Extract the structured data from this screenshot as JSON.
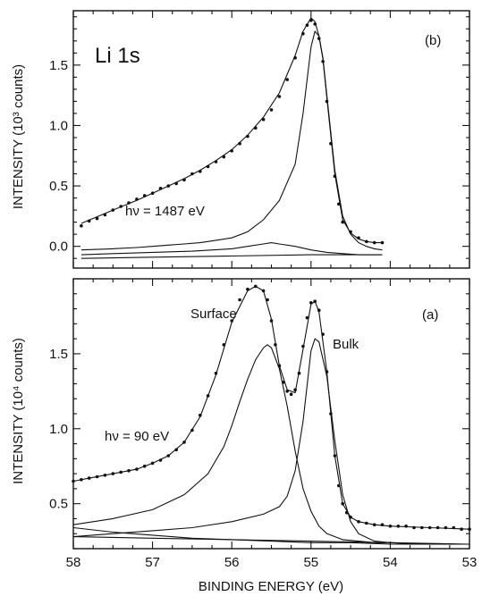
{
  "chart_data": [
    {
      "type": "scatter",
      "panel_label": "(b)",
      "title": "Li 1s",
      "annotation": "hν = 1487 eV",
      "ylabel": "INTENSITY (10³ counts)",
      "xlim": [
        58,
        53
      ],
      "ylim": [
        -0.18,
        1.95
      ],
      "xticks": [
        58,
        57,
        56,
        55,
        54,
        53
      ],
      "yticks": [
        0.0,
        0.5,
        1.0,
        1.5
      ],
      "ytick_labels": [
        "0.0",
        "0.5",
        "1.0",
        "1.5"
      ],
      "series": [
        {
          "kind": "points",
          "x": [
            57.9,
            57.8,
            57.7,
            57.6,
            57.5,
            57.4,
            57.3,
            57.2,
            57.1,
            57.0,
            56.9,
            56.8,
            56.7,
            56.6,
            56.5,
            56.4,
            56.3,
            56.2,
            56.1,
            56.0,
            55.9,
            55.8,
            55.7,
            55.6,
            55.5,
            55.4,
            55.3,
            55.2,
            55.1,
            55.05,
            55.0,
            54.95,
            54.9,
            54.85,
            54.8,
            54.75,
            54.7,
            54.65,
            54.6,
            54.5,
            54.4,
            54.3,
            54.2,
            54.1
          ],
          "y": [
            0.17,
            0.21,
            0.23,
            0.26,
            0.3,
            0.33,
            0.36,
            0.39,
            0.42,
            0.44,
            0.48,
            0.5,
            0.52,
            0.55,
            0.6,
            0.62,
            0.66,
            0.7,
            0.74,
            0.79,
            0.85,
            0.91,
            0.98,
            1.05,
            1.13,
            1.24,
            1.38,
            1.56,
            1.76,
            1.83,
            1.87,
            1.84,
            1.72,
            1.53,
            1.2,
            0.85,
            0.58,
            0.35,
            0.2,
            0.12,
            0.07,
            0.04,
            0.03,
            0.03
          ]
        },
        {
          "kind": "line",
          "x": [
            57.9,
            57.5,
            57.2,
            57.0,
            56.8,
            56.6,
            56.4,
            56.2,
            56.0,
            55.8,
            55.6,
            55.4,
            55.2,
            55.1,
            55.0,
            54.95,
            54.9,
            54.85,
            54.8,
            54.7,
            54.6,
            54.5,
            54.4,
            54.3,
            54.2,
            54.1
          ],
          "y": [
            0.19,
            0.3,
            0.38,
            0.44,
            0.5,
            0.56,
            0.63,
            0.71,
            0.8,
            0.92,
            1.07,
            1.27,
            1.58,
            1.78,
            1.89,
            1.86,
            1.74,
            1.55,
            1.23,
            0.6,
            0.22,
            0.11,
            0.06,
            0.04,
            0.03,
            0.03
          ]
        },
        {
          "kind": "line",
          "x": [
            57.9,
            57.5,
            57.2,
            57.0,
            56.8,
            56.6,
            56.4,
            56.2,
            56.0,
            55.8,
            55.6,
            55.4,
            55.2,
            55.1,
            55.0,
            54.95,
            54.9,
            54.85,
            54.8,
            54.7,
            54.6,
            54.5,
            54.4,
            54.3,
            54.2,
            54.1
          ],
          "y": [
            -0.03,
            -0.02,
            -0.01,
            0.0,
            0.01,
            0.02,
            0.03,
            0.05,
            0.07,
            0.12,
            0.22,
            0.38,
            0.68,
            1.1,
            1.65,
            1.78,
            1.74,
            1.56,
            1.25,
            0.63,
            0.25,
            0.1,
            0.03,
            0.0,
            -0.02,
            -0.03
          ]
        },
        {
          "kind": "line",
          "x": [
            57.9,
            57.5,
            57.0,
            56.5,
            56.0,
            55.8,
            55.6,
            55.5,
            55.4,
            55.2,
            55.0,
            54.8,
            54.6,
            54.4,
            54.2,
            54.1
          ],
          "y": [
            -0.07,
            -0.06,
            -0.05,
            -0.04,
            -0.02,
            0.0,
            0.02,
            0.03,
            0.02,
            0.0,
            -0.03,
            -0.05,
            -0.06,
            -0.07,
            -0.07,
            -0.07
          ]
        },
        {
          "kind": "line",
          "x": [
            57.9,
            57.0,
            56.0,
            55.0,
            54.1
          ],
          "y": [
            -0.1,
            -0.09,
            -0.08,
            -0.07,
            -0.07
          ]
        }
      ]
    },
    {
      "type": "scatter",
      "panel_label": "(a)",
      "annotation": "hν = 90 eV",
      "labels": [
        "Surface",
        "Bulk"
      ],
      "xlabel": "BINDING ENERGY (eV)",
      "ylabel": "INTENSITY (10⁴ counts)",
      "xlim": [
        58,
        53
      ],
      "ylim": [
        0.2,
        2.0
      ],
      "xticks": [
        58,
        57,
        56,
        55,
        54,
        53
      ],
      "xtick_labels": [
        "58",
        "57",
        "56",
        "55",
        "54",
        "53"
      ],
      "yticks": [
        0.5,
        1.0,
        1.5
      ],
      "ytick_labels": [
        "0.5",
        "1.0",
        "1.5"
      ],
      "series": [
        {
          "kind": "points",
          "x": [
            58.0,
            57.9,
            57.8,
            57.7,
            57.6,
            57.5,
            57.4,
            57.3,
            57.2,
            57.1,
            57.0,
            56.9,
            56.8,
            56.7,
            56.6,
            56.5,
            56.4,
            56.3,
            56.2,
            56.1,
            56.0,
            55.9,
            55.8,
            55.7,
            55.6,
            55.55,
            55.5,
            55.45,
            55.4,
            55.35,
            55.3,
            55.25,
            55.2,
            55.15,
            55.1,
            55.05,
            55.0,
            54.95,
            54.9,
            54.85,
            54.8,
            54.75,
            54.7,
            54.65,
            54.6,
            54.55,
            54.5,
            54.4,
            54.3,
            54.2,
            54.1,
            54.0,
            53.9,
            53.8,
            53.7,
            53.6,
            53.5,
            53.4,
            53.3,
            53.2,
            53.1,
            53.0
          ],
          "y": [
            0.65,
            0.66,
            0.67,
            0.68,
            0.69,
            0.7,
            0.71,
            0.72,
            0.73,
            0.75,
            0.77,
            0.79,
            0.82,
            0.86,
            0.91,
            0.99,
            1.09,
            1.22,
            1.37,
            1.56,
            1.72,
            1.86,
            1.93,
            1.95,
            1.92,
            1.86,
            1.72,
            1.56,
            1.42,
            1.31,
            1.25,
            1.23,
            1.26,
            1.37,
            1.55,
            1.74,
            1.84,
            1.85,
            1.79,
            1.63,
            1.38,
            1.1,
            0.82,
            0.62,
            0.5,
            0.44,
            0.41,
            0.38,
            0.37,
            0.36,
            0.36,
            0.35,
            0.35,
            0.35,
            0.34,
            0.34,
            0.34,
            0.34,
            0.34,
            0.34,
            0.33,
            0.33
          ]
        },
        {
          "kind": "line",
          "x": [
            58.0,
            57.8,
            57.6,
            57.4,
            57.2,
            57.0,
            56.8,
            56.6,
            56.4,
            56.2,
            56.0,
            55.8,
            55.7,
            55.6,
            55.5,
            55.4,
            55.3,
            55.2,
            55.1,
            55.0,
            54.95,
            54.9,
            54.8,
            54.7,
            54.6,
            54.5,
            54.4,
            54.2,
            54.0,
            53.5,
            53.0
          ],
          "y": [
            0.65,
            0.67,
            0.69,
            0.71,
            0.73,
            0.77,
            0.82,
            0.91,
            1.08,
            1.36,
            1.71,
            1.92,
            1.95,
            1.92,
            1.73,
            1.42,
            1.26,
            1.24,
            1.53,
            1.83,
            1.85,
            1.78,
            1.38,
            0.82,
            0.5,
            0.41,
            0.38,
            0.36,
            0.35,
            0.34,
            0.33
          ]
        },
        {
          "kind": "line",
          "x": [
            58.0,
            57.5,
            57.0,
            56.6,
            56.3,
            56.1,
            56.0,
            55.9,
            55.8,
            55.7,
            55.6,
            55.55,
            55.5,
            55.4,
            55.3,
            55.2,
            55.1,
            55.0,
            54.9,
            54.8,
            54.6,
            54.4,
            54.2,
            54.0,
            53.5,
            53.0
          ],
          "y": [
            0.36,
            0.4,
            0.46,
            0.56,
            0.7,
            0.88,
            1.02,
            1.18,
            1.33,
            1.46,
            1.54,
            1.56,
            1.54,
            1.4,
            1.15,
            0.85,
            0.6,
            0.45,
            0.35,
            0.3,
            0.26,
            0.25,
            0.24,
            0.24,
            0.23,
            0.23
          ]
        },
        {
          "kind": "line",
          "x": [
            58.0,
            57.5,
            57.0,
            56.5,
            56.0,
            55.6,
            55.4,
            55.3,
            55.2,
            55.1,
            55.0,
            54.95,
            54.9,
            54.8,
            54.7,
            54.6,
            54.5,
            54.4,
            54.2,
            54.0,
            53.5,
            53.0
          ],
          "y": [
            0.28,
            0.3,
            0.32,
            0.34,
            0.38,
            0.43,
            0.48,
            0.55,
            0.72,
            1.05,
            1.52,
            1.6,
            1.58,
            1.35,
            0.92,
            0.56,
            0.38,
            0.3,
            0.25,
            0.24,
            0.23,
            0.23
          ]
        },
        {
          "kind": "line",
          "x": [
            58.0,
            57.5,
            57.0,
            56.5,
            56.0,
            55.5,
            55.0,
            54.5,
            54.0,
            53.5,
            53.0
          ],
          "y": [
            0.34,
            0.31,
            0.29,
            0.27,
            0.26,
            0.25,
            0.24,
            0.24,
            0.23,
            0.23,
            0.23
          ]
        },
        {
          "kind": "line",
          "x": [
            58.0,
            57.0,
            56.0,
            55.0,
            54.0,
            53.0
          ],
          "y": [
            0.28,
            0.27,
            0.26,
            0.25,
            0.24,
            0.23
          ]
        }
      ]
    }
  ]
}
